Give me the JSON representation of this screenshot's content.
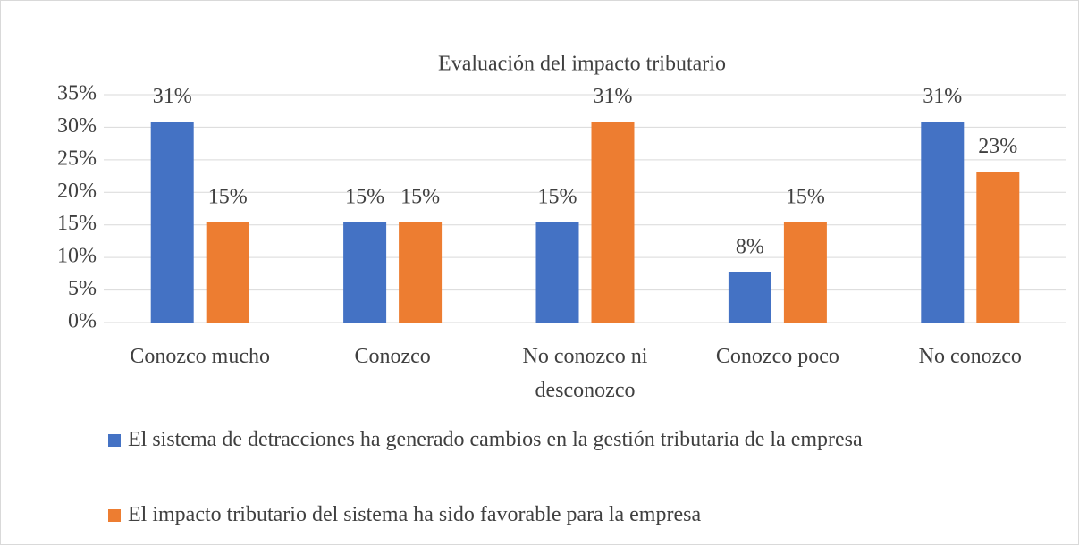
{
  "chart_data": {
    "type": "bar",
    "title": "Evaluación del impacto tributario",
    "categories": [
      "Conozco mucho",
      "Conozco",
      "No conozco ni desconozco",
      "Conozco poco",
      "No conozco"
    ],
    "series": [
      {
        "name": "El sistema de detracciones ha generado cambios en la gestión tributaria de la empresa",
        "color": "#4472c4",
        "values": [
          30.8,
          15.4,
          15.4,
          7.7,
          30.8
        ],
        "value_labels": [
          "31%",
          "15%",
          "15%",
          "8%",
          "31%"
        ]
      },
      {
        "name": "El impacto tributario del sistema ha sido favorable para la empresa",
        "color": "#ed7d31",
        "values": [
          15.4,
          15.4,
          30.8,
          15.4,
          23.1
        ],
        "value_labels": [
          "15%",
          "15%",
          "31%",
          "15%",
          "23%"
        ]
      }
    ],
    "ylim": [
      0,
      35
    ],
    "yticks": [
      {
        "value": 0,
        "label": "0%"
      },
      {
        "value": 5,
        "label": "5%"
      },
      {
        "value": 10,
        "label": "10%"
      },
      {
        "value": 15,
        "label": "15%"
      },
      {
        "value": 20,
        "label": "20%"
      },
      {
        "value": 25,
        "label": "25%"
      },
      {
        "value": 30,
        "label": "30%"
      },
      {
        "value": 35,
        "label": "35%"
      }
    ],
    "grid": true,
    "legend": "bottom"
  }
}
